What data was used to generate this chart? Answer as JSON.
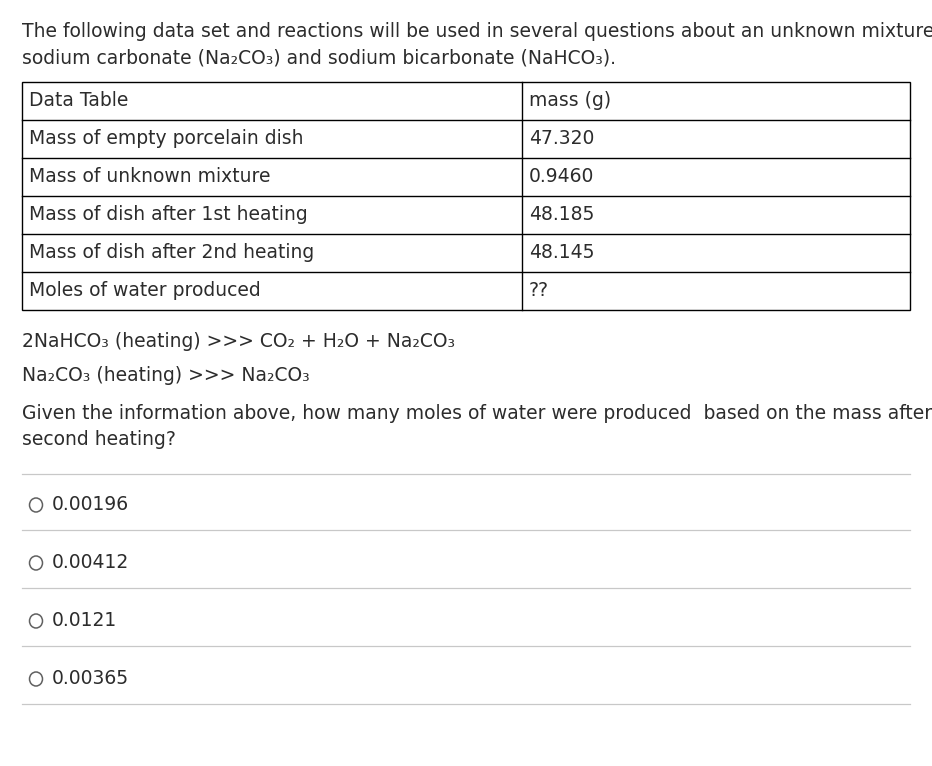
{
  "bg_color": "#ffffff",
  "intro_text_line1": "The following data set and reactions will be used in several questions about an unknown mixture of",
  "intro_text_line2": "sodium carbonate (Na₂CO₃) and sodium bicarbonate (NaHCO₃).",
  "table_headers": [
    "Data Table",
    "mass (g)"
  ],
  "table_rows": [
    [
      "Mass of empty porcelain dish",
      "47.320"
    ],
    [
      "Mass of unknown mixture",
      "0.9460"
    ],
    [
      "Mass of dish after 1st heating",
      "48.185"
    ],
    [
      "Mass of dish after 2nd heating",
      "48.145"
    ],
    [
      "Moles of water produced",
      "??"
    ]
  ],
  "reaction1": "2NaHCO₃ (heating) >>> CO₂ + H₂O + Na₂CO₃",
  "reaction2": "Na₂CO₃ (heating) >>> Na₂CO₃",
  "question_line1": "Given the information above, how many moles of water were produced  based on the mass after the",
  "question_line2": "second heating?",
  "choices": [
    "0.00196",
    "0.00412",
    "0.0121",
    "0.00365"
  ],
  "text_color": "#2c2c2c",
  "table_border_color": "#000000",
  "separator_color": "#c8c8c8",
  "circle_color": "#606060",
  "font_size": 13.5
}
